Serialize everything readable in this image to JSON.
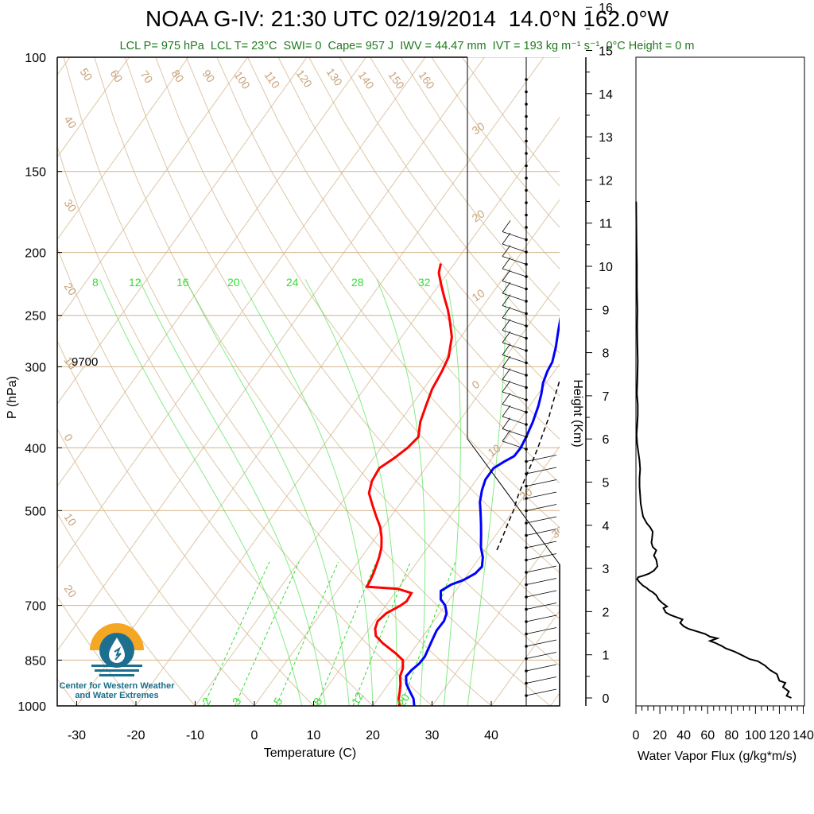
{
  "header": {
    "title": "NOAA G-IV: 21:30 UTC 02/19/2014  14.0°N 162.0°W",
    "subtitle": "LCL P= 975 hPa  LCL T= 23°C  SWI= 0  Cape= 957 J  IWV = 44.47 mm  IVT = 193 kg m⁻¹ s⁻¹  0°C Height = 0 m"
  },
  "annotation": {
    "level_label": "9700"
  },
  "logo": {
    "icon": "water-drop-sun-icon",
    "line1": "Center for Western Weather",
    "line2": "and Water Extremes"
  },
  "colors": {
    "temperature": "#ff0000",
    "dewpoint_or_parcel": "#0000ff",
    "isotherm": "#d2b48c",
    "mixing_ratio": "#33dd33",
    "subtitle": "#1f7a1f",
    "flux": "#000000"
  },
  "chart_data": [
    {
      "type": "line",
      "title": "NOAA G-IV: 21:30 UTC 02/19/2014  14.0°N 162.0°W",
      "xlabel": "Temperature (C)",
      "ylabel": "P (hPa)",
      "xlim": [
        -35,
        50
      ],
      "ylim": [
        1000,
        100
      ],
      "y_scale": "log",
      "x_ticks": [
        -30,
        -20,
        -10,
        0,
        10,
        20,
        30,
        40
      ],
      "y_ticks": [
        100,
        150,
        200,
        250,
        300,
        400,
        500,
        700,
        850,
        1000
      ],
      "isotherm_labels": [
        "50",
        "60",
        "70",
        "80",
        "90",
        "100",
        "110",
        "120",
        "130",
        "140",
        "150",
        "160",
        "40",
        "30",
        "20",
        "10",
        "0",
        "10",
        "20"
      ],
      "dry_adiabat_labels": [
        "30",
        "20",
        "10",
        "0",
        "10",
        "20",
        "30"
      ],
      "mixing_ratio_labels_top": [
        "8",
        "12",
        "16",
        "20",
        "24",
        "28",
        "32"
      ],
      "mixing_ratio_labels_bottom": [
        "2",
        "3",
        "5",
        "8",
        "12",
        "20"
      ],
      "series": [
        {
          "color": "red",
          "points": [
            [
              24.5,
              1000
            ],
            [
              23.5,
              975
            ],
            [
              22.8,
              950
            ],
            [
              22.0,
              925
            ],
            [
              21.0,
              900
            ],
            [
              20.5,
              875
            ],
            [
              19.5,
              850
            ],
            [
              17.5,
              830
            ],
            [
              14.0,
              800
            ],
            [
              12.0,
              780
            ],
            [
              11.0,
              760
            ],
            [
              10.5,
              740
            ],
            [
              11.0,
              720
            ],
            [
              12.5,
              700
            ],
            [
              13.0,
              690
            ],
            [
              12.8,
              670
            ],
            [
              10.0,
              660
            ],
            [
              4.5,
              655
            ],
            [
              4.3,
              640
            ],
            [
              4.0,
              625
            ],
            [
              3.6,
              610
            ],
            [
              3.0,
              590
            ],
            [
              2.2,
              570
            ],
            [
              1.0,
              550
            ],
            [
              -0.5,
              530
            ],
            [
              -2.5,
              510
            ],
            [
              -4.5,
              490
            ],
            [
              -6.5,
              470
            ],
            [
              -7.5,
              450
            ],
            [
              -7.8,
              430
            ],
            [
              -6.5,
              415
            ],
            [
              -5.5,
              400
            ],
            [
              -5.0,
              385
            ],
            [
              -6.5,
              365
            ],
            [
              -7.5,
              345
            ],
            [
              -8.5,
              325
            ],
            [
              -9.0,
              305
            ],
            [
              -9.6,
              290
            ],
            [
              -11.5,
              270
            ],
            [
              -13.8,
              255
            ],
            [
              -15.5,
              245
            ],
            [
              -17.5,
              235
            ],
            [
              -19.5,
              225
            ],
            [
              -21.5,
              215
            ],
            [
              -22.3,
              208
            ]
          ]
        },
        {
          "color": "blue",
          "points": [
            [
              27.0,
              1000
            ],
            [
              26.0,
              975
            ],
            [
              24.5,
              950
            ],
            [
              23.0,
              925
            ],
            [
              22.0,
              900
            ],
            [
              22.2,
              880
            ],
            [
              22.7,
              860
            ],
            [
              22.8,
              840
            ],
            [
              22.4,
              815
            ],
            [
              22.0,
              790
            ],
            [
              21.6,
              765
            ],
            [
              21.7,
              740
            ],
            [
              21.2,
              720
            ],
            [
              20.0,
              700
            ],
            [
              18.5,
              685
            ],
            [
              17.5,
              665
            ],
            [
              18.5,
              650
            ],
            [
              20.0,
              640
            ],
            [
              21.2,
              625
            ],
            [
              21.5,
              610
            ],
            [
              20.5,
              590
            ],
            [
              19.0,
              570
            ],
            [
              17.5,
              545
            ],
            [
              16.2,
              525
            ],
            [
              14.8,
              505
            ],
            [
              13.3,
              485
            ],
            [
              12.2,
              465
            ],
            [
              11.5,
              448
            ],
            [
              11.5,
              430
            ],
            [
              12.5,
              420
            ],
            [
              13.5,
              412
            ],
            [
              13.6,
              400
            ],
            [
              13.2,
              385
            ],
            [
              12.5,
              365
            ],
            [
              11.5,
              345
            ],
            [
              10.5,
              330
            ],
            [
              9.5,
              318
            ],
            [
              8.8,
              305
            ],
            [
              8.5,
              295
            ],
            [
              7.3,
              280
            ],
            [
              5.8,
              265
            ],
            [
              4.3,
              250
            ],
            [
              3.0,
              238
            ],
            [
              1.7,
              225
            ],
            [
              1.1,
              215
            ],
            [
              0.9,
              208
            ]
          ]
        },
        {
          "color": "black-dashed",
          "points": [
            [
              22.0,
              575
            ],
            [
              21.4,
              550
            ],
            [
              20.7,
              525
            ],
            [
              20.0,
              500
            ],
            [
              19.0,
              475
            ],
            [
              18.2,
              450
            ],
            [
              17.4,
              425
            ],
            [
              16.5,
              400
            ],
            [
              15.6,
              380
            ],
            [
              14.7,
              360
            ],
            [
              13.5,
              340
            ],
            [
              12.3,
              320
            ],
            [
              11.0,
              300
            ],
            [
              9.6,
              280
            ],
            [
              8.0,
              260
            ],
            [
              6.3,
              240
            ],
            [
              4.5,
              220
            ],
            [
              3.5,
              210
            ]
          ]
        }
      ]
    },
    {
      "type": "line",
      "xlabel": "Water Vapor Flux (g/kg*m/s)",
      "ylabel": "Height (Km)",
      "xlim": [
        0,
        140
      ],
      "ylim": [
        0,
        16.5
      ],
      "x_ticks": [
        0,
        20,
        40,
        60,
        80,
        100,
        120,
        140
      ],
      "y_ticks": [
        0,
        1,
        2,
        3,
        4,
        5,
        6,
        7,
        8,
        9,
        10,
        11,
        12,
        13,
        14,
        15,
        16
      ],
      "series": [
        {
          "color": "black",
          "points": [
            [
              130,
              0.0
            ],
            [
              126,
              0.05
            ],
            [
              128,
              0.15
            ],
            [
              123,
              0.25
            ],
            [
              125,
              0.35
            ],
            [
              120,
              0.4
            ],
            [
              118,
              0.55
            ],
            [
              112,
              0.65
            ],
            [
              108,
              0.75
            ],
            [
              102,
              0.85
            ],
            [
              95,
              0.9
            ],
            [
              88,
              1.0
            ],
            [
              82,
              1.08
            ],
            [
              75,
              1.15
            ],
            [
              72,
              1.2
            ],
            [
              66,
              1.28
            ],
            [
              62,
              1.32
            ],
            [
              68,
              1.38
            ],
            [
              62,
              1.42
            ],
            [
              58,
              1.48
            ],
            [
              50,
              1.55
            ],
            [
              44,
              1.6
            ],
            [
              40,
              1.66
            ],
            [
              37,
              1.74
            ],
            [
              39,
              1.82
            ],
            [
              33,
              1.88
            ],
            [
              29,
              1.92
            ],
            [
              25,
              1.98
            ],
            [
              23,
              2.08
            ],
            [
              26,
              2.12
            ],
            [
              22,
              2.2
            ],
            [
              19,
              2.28
            ],
            [
              17,
              2.38
            ],
            [
              14,
              2.45
            ],
            [
              11,
              2.5
            ],
            [
              9,
              2.55
            ],
            [
              6,
              2.6
            ],
            [
              3,
              2.68
            ],
            [
              1,
              2.75
            ],
            [
              2,
              2.8
            ],
            [
              6,
              2.83
            ],
            [
              11,
              2.88
            ],
            [
              15,
              2.95
            ],
            [
              18,
              3.05
            ],
            [
              17,
              3.2
            ],
            [
              15,
              3.3
            ],
            [
              17,
              3.42
            ],
            [
              14,
              3.5
            ],
            [
              13,
              3.6
            ],
            [
              13.5,
              3.7
            ],
            [
              14,
              3.85
            ],
            [
              12,
              3.95
            ],
            [
              9,
              4.05
            ],
            [
              6,
              4.2
            ],
            [
              5,
              4.35
            ],
            [
              4,
              4.5
            ],
            [
              3.5,
              4.7
            ],
            [
              3,
              4.9
            ],
            [
              3,
              5.1
            ],
            [
              3.5,
              5.3
            ],
            [
              3,
              5.5
            ],
            [
              2,
              5.7
            ],
            [
              1,
              5.9
            ],
            [
              0.5,
              6.1
            ],
            [
              1,
              6.3
            ],
            [
              1.5,
              6.55
            ],
            [
              1.5,
              6.8
            ],
            [
              0.8,
              7.05
            ],
            [
              1.2,
              7.4
            ],
            [
              1.5,
              7.8
            ],
            [
              1.2,
              8.2
            ],
            [
              1,
              8.6
            ],
            [
              1.2,
              9.0
            ],
            [
              0.8,
              9.5
            ],
            [
              0.8,
              10.0
            ],
            [
              0.5,
              10.5
            ],
            [
              0.3,
              11.0
            ],
            [
              0.2,
              11.5
            ]
          ]
        }
      ]
    }
  ]
}
